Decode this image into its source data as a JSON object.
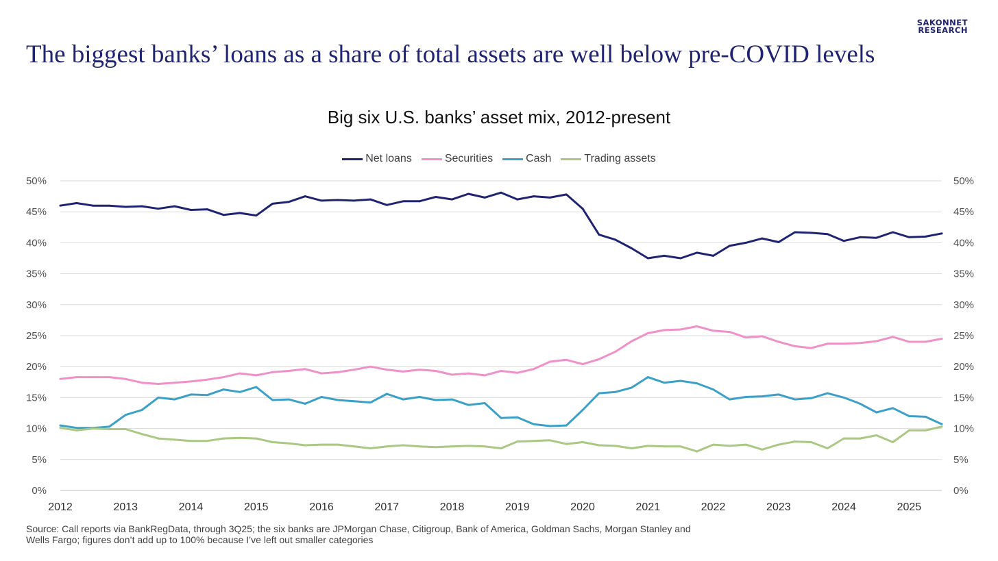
{
  "brand": {
    "line1": "SAKONNET",
    "line2": "RESEARCH",
    "color": "#1f2472"
  },
  "headline": "The biggest banks’ loans as a share of total assets are well below pre-COVID levels",
  "source": "Source: Call reports via BankRegData, through 3Q25; the six banks are JPMorgan Chase, Citigroup, Bank of America, Goldman Sachs, Morgan Stanley and Wells Fargo; figures don’t add up to 100% because I’ve left out smaller categories",
  "chart_data": {
    "type": "line",
    "title": "Big six U.S. banks’ asset mix, 2012-present",
    "xlabel": "",
    "ylabel": "",
    "x_start": "2012Q1",
    "x_end": "2025Q3",
    "x_ticks": [
      "2012",
      "2013",
      "2014",
      "2015",
      "2016",
      "2017",
      "2018",
      "2019",
      "2020",
      "2021",
      "2022",
      "2023",
      "2024",
      "2025"
    ],
    "y_ticks": [
      "0%",
      "5%",
      "10%",
      "15%",
      "20%",
      "25%",
      "30%",
      "35%",
      "40%",
      "45%",
      "50%"
    ],
    "ylim": [
      0,
      50
    ],
    "y_unit": "%",
    "grid": true,
    "secondary_axis_mirror": true,
    "legend_position": "top-center",
    "series": [
      {
        "name": "Net loans",
        "color": "#1f2472",
        "values": [
          46.0,
          46.4,
          46.0,
          46.0,
          45.8,
          45.9,
          45.5,
          45.9,
          45.3,
          45.4,
          44.5,
          44.8,
          44.4,
          46.3,
          46.6,
          47.5,
          46.8,
          46.9,
          46.8,
          47.0,
          46.1,
          46.7,
          46.7,
          47.4,
          47.0,
          47.9,
          47.3,
          48.1,
          47.0,
          47.5,
          47.3,
          47.8,
          45.5,
          41.3,
          40.5,
          39.1,
          37.5,
          37.9,
          37.5,
          38.4,
          37.9,
          39.5,
          40.0,
          40.7,
          40.1,
          41.7,
          41.6,
          41.4,
          40.3,
          40.9,
          40.8,
          41.7,
          40.9,
          41.0,
          41.5
        ]
      },
      {
        "name": "Securities",
        "color": "#f090c8",
        "values": [
          18.0,
          18.3,
          18.3,
          18.3,
          18.0,
          17.4,
          17.2,
          17.4,
          17.6,
          17.9,
          18.3,
          18.9,
          18.6,
          19.1,
          19.3,
          19.6,
          18.9,
          19.1,
          19.5,
          20.0,
          19.5,
          19.2,
          19.5,
          19.3,
          18.7,
          18.9,
          18.6,
          19.3,
          19.0,
          19.6,
          20.8,
          21.1,
          20.4,
          21.2,
          22.4,
          24.1,
          25.4,
          25.9,
          26.0,
          26.5,
          25.8,
          25.6,
          24.7,
          24.9,
          24.0,
          23.3,
          23.0,
          23.7,
          23.7,
          23.8,
          24.1,
          24.8,
          24.0,
          24.0,
          24.5
        ]
      },
      {
        "name": "Cash",
        "color": "#3aa0c8",
        "values": [
          10.5,
          10.1,
          10.1,
          10.3,
          12.2,
          13.0,
          15.0,
          14.7,
          15.5,
          15.4,
          16.3,
          15.9,
          16.7,
          14.6,
          14.7,
          14.0,
          15.1,
          14.6,
          14.4,
          14.2,
          15.6,
          14.7,
          15.1,
          14.6,
          14.7,
          13.8,
          14.1,
          11.7,
          11.8,
          10.7,
          10.4,
          10.5,
          13.0,
          15.7,
          15.9,
          16.6,
          18.3,
          17.4,
          17.7,
          17.3,
          16.3,
          14.7,
          15.1,
          15.2,
          15.5,
          14.7,
          14.9,
          15.7,
          15.0,
          14.0,
          12.6,
          13.3,
          12.0,
          11.9,
          10.7
        ]
      },
      {
        "name": "Trading assets",
        "color": "#a9c882",
        "values": [
          10.1,
          9.7,
          10.0,
          9.9,
          9.9,
          9.1,
          8.4,
          8.2,
          8.0,
          8.0,
          8.4,
          8.5,
          8.4,
          7.8,
          7.6,
          7.3,
          7.4,
          7.4,
          7.1,
          6.8,
          7.1,
          7.3,
          7.1,
          7.0,
          7.1,
          7.2,
          7.1,
          6.8,
          7.9,
          8.0,
          8.1,
          7.5,
          7.8,
          7.3,
          7.2,
          6.8,
          7.2,
          7.1,
          7.1,
          6.3,
          7.4,
          7.2,
          7.4,
          6.6,
          7.4,
          7.9,
          7.8,
          6.8,
          8.4,
          8.4,
          8.9,
          7.8,
          9.7,
          9.7,
          10.3
        ]
      }
    ]
  }
}
